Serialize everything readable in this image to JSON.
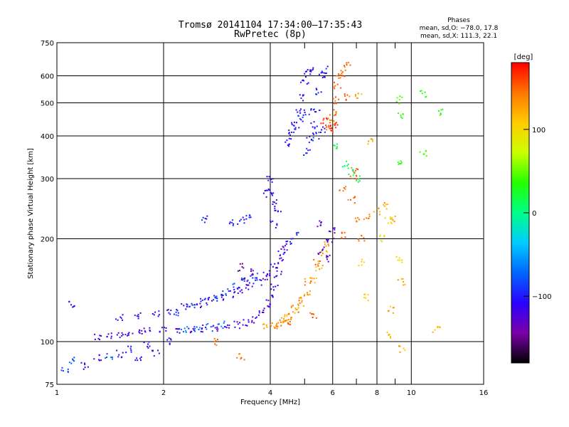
{
  "header": {
    "title_line1": "Tromsø 20141104 17:34:00–17:35:43",
    "title_line2": "RwPretec (8p)"
  },
  "stats": {
    "heading": "Phases",
    "line_o": "mean, sd,O: −78.0, 17.8",
    "line_x": "mean, sd,X: 111.3, 22.1"
  },
  "colorbar": {
    "unit": "[deg]",
    "ticks": [
      {
        "value": 100,
        "label": "100"
      },
      {
        "value": 0,
        "label": "0"
      },
      {
        "value": -100,
        "label": "−100"
      }
    ],
    "range": [
      -180,
      180
    ],
    "colors": [
      "#000000",
      "#7a00a8",
      "#2a00ff",
      "#0066ff",
      "#00ccff",
      "#00ff88",
      "#22ff00",
      "#ccff00",
      "#ffcc00",
      "#ff7700",
      "#ff0000"
    ]
  },
  "chart_data": {
    "type": "scatter",
    "title": "Tromsø 20141104 17:34:00–17:35:43",
    "subtitle": "RwPretec (8p)",
    "xlabel": "Frequency [MHz]",
    "ylabel": "Stationary phase Virtual Height [km]",
    "xscale": "log",
    "yscale": "log",
    "xlim": [
      1,
      16
    ],
    "ylim": [
      75,
      750
    ],
    "xticks": [
      1,
      2,
      4,
      6,
      8,
      10,
      16
    ],
    "xtick_labels": [
      "1",
      "2",
      "4",
      "6",
      "8",
      "10",
      "16"
    ],
    "x_minor_ticks": [
      5,
      7,
      9
    ],
    "yticks": [
      75,
      100,
      200,
      300,
      400,
      500,
      600,
      750
    ],
    "ytick_labels": [
      "75",
      "100",
      "200",
      "300",
      "400",
      "500",
      "600",
      "750"
    ],
    "grid": true,
    "color_by": "phase [deg]",
    "series": [
      {
        "values": [
          [
            1.3,
            103
          ],
          [
            1.4,
            104
          ],
          [
            1.5,
            105
          ],
          [
            1.6,
            106
          ],
          [
            1.7,
            107
          ],
          [
            1.8,
            107
          ],
          [
            2.0,
            108
          ],
          [
            2.2,
            108
          ],
          [
            2.4,
            109
          ],
          [
            2.6,
            109
          ],
          [
            2.8,
            110
          ],
          [
            3.0,
            111
          ],
          [
            3.2,
            112
          ],
          [
            3.4,
            114
          ],
          [
            3.6,
            116
          ],
          [
            3.8,
            121
          ],
          [
            3.9,
            127
          ],
          [
            4.0,
            135
          ],
          [
            4.1,
            145
          ],
          [
            4.2,
            158
          ],
          [
            4.3,
            172
          ],
          [
            4.4,
            190
          ]
        ],
        "color_value": -120
      },
      {
        "values": [
          [
            1.5,
            118
          ],
          [
            1.7,
            119
          ],
          [
            1.9,
            120
          ],
          [
            2.1,
            122
          ],
          [
            2.3,
            126
          ],
          [
            2.5,
            129
          ],
          [
            2.7,
            132
          ],
          [
            2.9,
            135
          ],
          [
            3.1,
            138
          ],
          [
            3.3,
            141
          ],
          [
            3.5,
            145
          ],
          [
            3.7,
            150
          ],
          [
            3.9,
            158
          ],
          [
            4.1,
            168
          ],
          [
            4.3,
            180
          ],
          [
            4.5,
            195
          ],
          [
            4.7,
            205
          ]
        ],
        "color_value": -108
      },
      {
        "values": [
          [
            2.2,
            122
          ],
          [
            2.4,
            128
          ],
          [
            2.6,
            131
          ],
          [
            2.8,
            134
          ],
          [
            3.0,
            140
          ],
          [
            3.2,
            145
          ],
          [
            3.4,
            152
          ],
          [
            3.6,
            156
          ]
        ],
        "color_value": -85
      },
      {
        "values": [
          [
            2.3,
            108
          ],
          [
            2.5,
            109
          ],
          [
            2.7,
            110
          ],
          [
            2.9,
            112
          ]
        ],
        "color_value": -70
      },
      {
        "values": [
          [
            3.1,
            222
          ],
          [
            3.3,
            226
          ],
          [
            3.5,
            232
          ],
          [
            2.6,
            229
          ]
        ],
        "color_value": -100
      },
      {
        "values": [
          [
            3.9,
            110
          ],
          [
            4.1,
            112
          ],
          [
            4.3,
            115
          ],
          [
            4.5,
            118
          ],
          [
            4.7,
            123
          ],
          [
            4.9,
            128
          ],
          [
            5.1,
            138
          ],
          [
            5.3,
            150
          ],
          [
            5.5,
            165
          ],
          [
            5.7,
            182
          ],
          [
            5.8,
            195
          ]
        ],
        "color_value": 125
      },
      {
        "values": [
          [
            4.1,
            112
          ],
          [
            4.3,
            114
          ],
          [
            4.5,
            118
          ],
          [
            4.7,
            125
          ],
          [
            4.9,
            135
          ],
          [
            5.1,
            150
          ],
          [
            5.4,
            170
          ]
        ],
        "color_value": 140
      },
      {
        "values": [
          [
            4.5,
            380
          ],
          [
            4.6,
            400
          ],
          [
            4.7,
            430
          ],
          [
            4.8,
            470
          ],
          [
            4.9,
            520
          ],
          [
            5.0,
            570
          ],
          [
            5.1,
            610
          ],
          [
            5.2,
            620
          ]
        ],
        "color_value": -110
      },
      {
        "values": [
          [
            5.1,
            360
          ],
          [
            5.2,
            390
          ],
          [
            5.3,
            430
          ],
          [
            5.4,
            480
          ],
          [
            5.5,
            540
          ],
          [
            5.6,
            600
          ],
          [
            5.7,
            625
          ]
        ],
        "color_value": -100
      },
      {
        "values": [
          [
            4.6,
            420
          ],
          [
            4.9,
            450
          ],
          [
            5.1,
            470
          ],
          [
            5.4,
            400
          ],
          [
            5.6,
            420
          ]
        ],
        "color_value": -95
      },
      {
        "values": [
          [
            5.8,
            420
          ],
          [
            5.9,
            440
          ],
          [
            6.0,
            470
          ],
          [
            6.1,
            510
          ],
          [
            6.2,
            560
          ],
          [
            6.3,
            600
          ]
        ],
        "color_value": 150
      },
      {
        "values": [
          [
            5.7,
            440
          ],
          [
            5.9,
            420
          ],
          [
            6.1,
            430
          ]
        ],
        "color_value": 165
      },
      {
        "values": [
          [
            6.4,
            280
          ],
          [
            6.8,
            260
          ],
          [
            7.0,
            230
          ],
          [
            7.5,
            230
          ],
          [
            7.2,
            200
          ],
          [
            6.5,
            205
          ]
        ],
        "color_value": 145
      },
      {
        "values": [
          [
            3.9,
            275
          ],
          [
            4.0,
            270
          ],
          [
            4.1,
            255
          ],
          [
            4.2,
            245
          ],
          [
            4.0,
            300
          ],
          [
            4.1,
            220
          ]
        ],
        "color_value": -110
      },
      {
        "values": [
          [
            5.5,
            220
          ],
          [
            5.9,
            200
          ],
          [
            5.8,
            175
          ],
          [
            6.0,
            210
          ],
          [
            5.6,
            185
          ]
        ],
        "color_value": -130
      },
      {
        "values": [
          [
            3.3,
            165
          ],
          [
            3.6,
            160
          ],
          [
            3.9,
            155
          ],
          [
            3.4,
            150
          ]
        ],
        "color_value": -140
      },
      {
        "values": [
          [
            1.1,
            128
          ],
          [
            1.2,
            85
          ],
          [
            1.3,
            90
          ],
          [
            1.5,
            92
          ],
          [
            1.6,
            95
          ],
          [
            1.8,
            98
          ],
          [
            1.9,
            92
          ],
          [
            2.1,
            100
          ],
          [
            1.7,
            88
          ]
        ],
        "color_value": -110
      },
      {
        "values": [
          [
            1.05,
            83
          ],
          [
            1.1,
            88
          ],
          [
            1.4,
            90
          ]
        ],
        "color_value": -80
      },
      {
        "values": [
          [
            9.2,
            510
          ],
          [
            9.3,
            455
          ],
          [
            10.8,
            530
          ],
          [
            12.2,
            470
          ],
          [
            10.8,
            355
          ],
          [
            9.2,
            332
          ]
        ],
        "color_value": 40
      },
      {
        "values": [
          [
            7.1,
            520
          ],
          [
            7.6,
            385
          ],
          [
            8.0,
            240
          ],
          [
            8.5,
            250
          ],
          [
            8.8,
            228
          ]
        ],
        "color_value": 125
      },
      {
        "values": [
          [
            9.4,
            150
          ],
          [
            8.8,
            124
          ],
          [
            8.7,
            105
          ],
          [
            9.4,
            95
          ],
          [
            11.8,
            108
          ]
        ],
        "color_value": 120
      },
      {
        "values": [
          [
            8.2,
            200
          ],
          [
            8.6,
            226
          ],
          [
            9.2,
            173
          ],
          [
            7.5,
            135
          ],
          [
            7.2,
            170
          ]
        ],
        "color_value": 100
      },
      {
        "values": [
          [
            2.8,
            100
          ],
          [
            3.3,
            90
          ],
          [
            4.5,
            115
          ],
          [
            5.3,
            120
          ]
        ],
        "color_value": 150
      },
      {
        "values": [
          [
            6.6,
            640
          ],
          [
            6.4,
            610
          ],
          [
            6.6,
            520
          ],
          [
            6.9,
            320
          ],
          [
            6.9,
            305
          ]
        ],
        "color_value": 150
      },
      {
        "values": [
          [
            6.1,
            370
          ],
          [
            6.5,
            330
          ],
          [
            6.8,
            315
          ],
          [
            7.0,
            300
          ]
        ],
        "color_value": 10
      }
    ]
  }
}
